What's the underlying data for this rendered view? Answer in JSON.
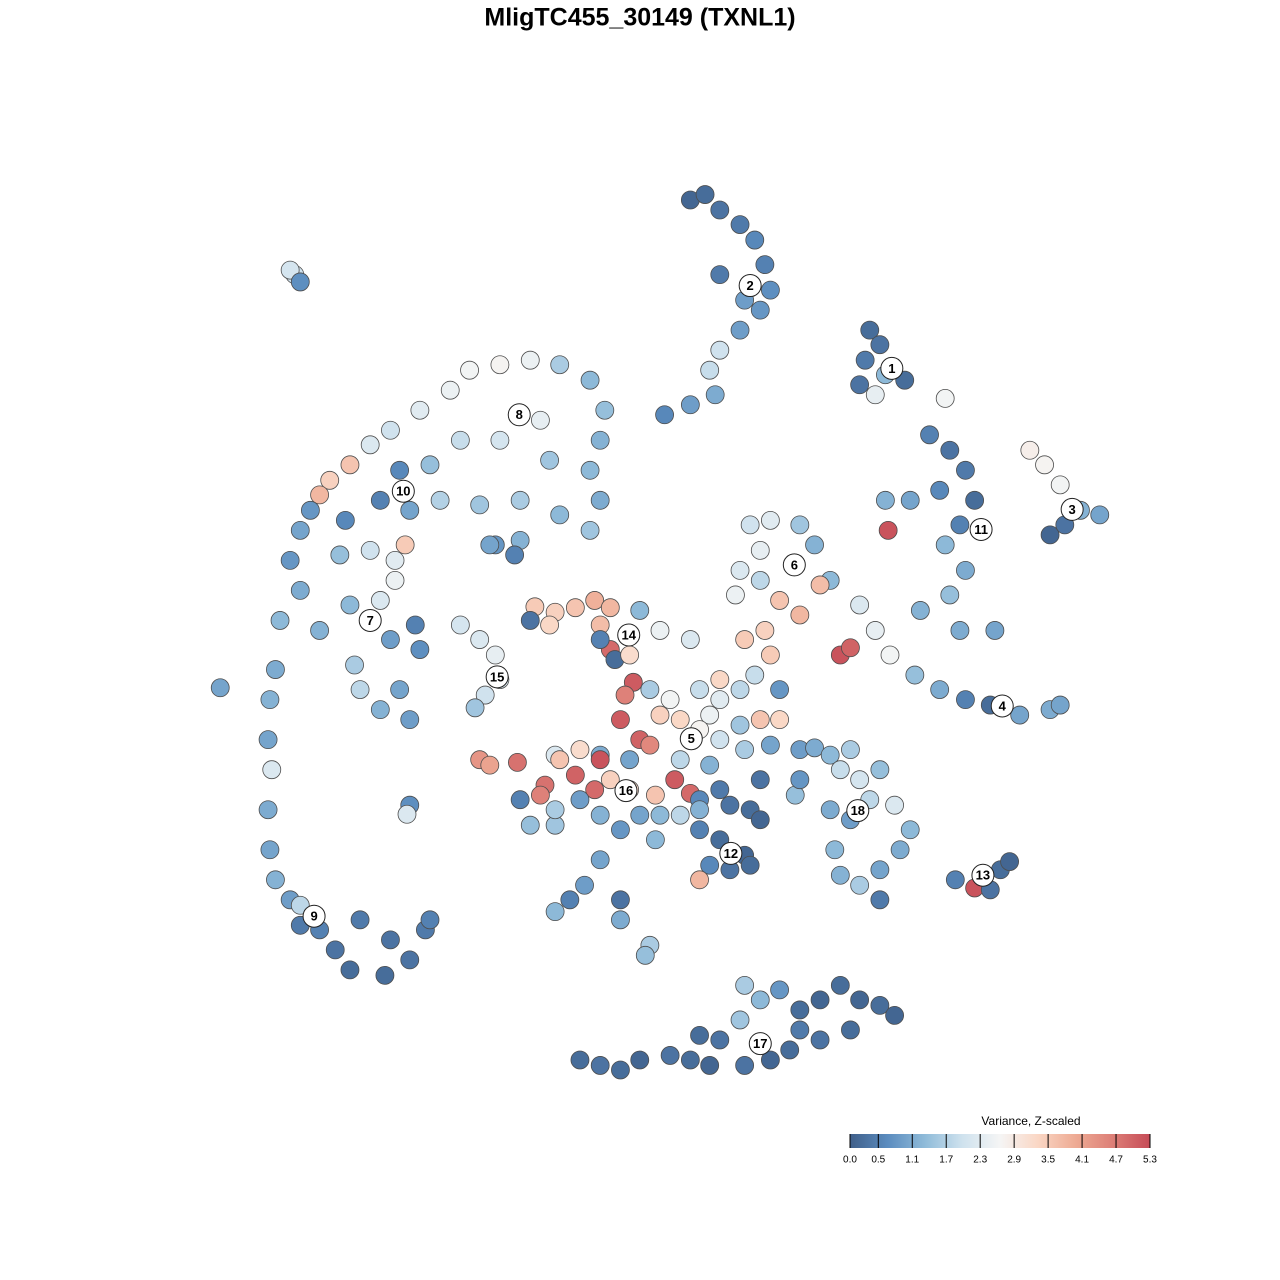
{
  "chart_data": {
    "type": "scatter",
    "title": "MligTC455_30149 (TXNL1)",
    "xlim": [
      0,
      100
    ],
    "ylim": [
      0,
      100
    ],
    "x": [
      53.3,
      54.9,
      56.5,
      58.7,
      60.3,
      61.4,
      62.0,
      60.9,
      58.7,
      56.5,
      55.4,
      56.0,
      53.3,
      50.5,
      56.5,
      59.2,
      72.8,
      73.9,
      72.3,
      74.5,
      76.6,
      73.4,
      71.7,
      81.0,
      90.2,
      91.8,
      93.5,
      95.7,
      97.8,
      92.4,
      94.0,
      79.3,
      81.5,
      83.2,
      80.4,
      77.2,
      74.5,
      84.2,
      82.6,
      81.0,
      83.2,
      81.5,
      78.3,
      82.6,
      86.4,
      74.8,
      71.7,
      73.4,
      75.0,
      77.7,
      80.4,
      83.2,
      85.9,
      89.1,
      92.4,
      93.5,
      69.6,
      70.7,
      59.8,
      62.0,
      65.2,
      66.8,
      60.9,
      58.7,
      58.2,
      60.9,
      68.5,
      63.0,
      65.2,
      61.4,
      59.2,
      62.0,
      67.4,
      29.3,
      32.6,
      35.9,
      39.1,
      42.4,
      44.0,
      43.5,
      42.4,
      43.5,
      42.4,
      39.1,
      34.8,
      30.4,
      27.2,
      23.9,
      20.7,
      18.5,
      37.0,
      32.6,
      28.3,
      25.0,
      21.7,
      19.6,
      22.8,
      16.3,
      14.1,
      13.0,
      12.0,
      15.8,
      26.1,
      38.0,
      34.8,
      32.1,
      34.2,
      10.9,
      9.8,
      10.9,
      8.7,
      13.0,
      15.2,
      18.5,
      21.2,
      21.2,
      19.6,
      16.3,
      20.7,
      23.9,
      21.7,
      19.6,
      16.8,
      22.8,
      23.4,
      17.4,
      22.3,
      8.2,
      7.6,
      7.4,
      7.8,
      7.4,
      7.6,
      8.2,
      9.8,
      10.9,
      13.0,
      14.7,
      16.3,
      17.4,
      20.7,
      20.1,
      22.8,
      24.5,
      25.0,
      10.3,
      9.8,
      10.9,
      2.2,
      22.8,
      22.5,
      10.9,
      28.3,
      30.4,
      32.1,
      32.6,
      31.0,
      29.9,
      31.5,
      36.4,
      38.6,
      40.8,
      42.9,
      44.6,
      43.5,
      35.9,
      38.0,
      47.8,
      50.0,
      53.3,
      44.6,
      45.1,
      47.1,
      43.5,
      46.7,
      48.9,
      51.1,
      54.3,
      56.5,
      58.7,
      55.4,
      50.0,
      52.2,
      54.3,
      56.5,
      58.7,
      60.9,
      63.0,
      62.0,
      59.2,
      47.8,
      45.7,
      48.9,
      46.7,
      52.2,
      55.4,
      43.5,
      56.5,
      60.3,
      63.0,
      46.2,
      38.6,
      41.3,
      43.5,
      40.8,
      42.9,
      37.5,
      37.0,
      34.8,
      35.9,
      38.6,
      41.3,
      44.6,
      46.7,
      49.5,
      51.6,
      53.3,
      30.4,
      31.5,
      34.5,
      39.1,
      47.8,
      50.0,
      43.5,
      38.6,
      45.7,
      43.5,
      41.8,
      40.2,
      38.6,
      45.7,
      45.7,
      48.9,
      48.4,
      49.5,
      54.3,
      56.5,
      57.6,
      59.8,
      60.9,
      54.3,
      56.5,
      59.2,
      59.8,
      55.4,
      57.6,
      54.3,
      54.3,
      52.2,
      60.9,
      65.2,
      66.8,
      68.5,
      70.7,
      69.6,
      71.7,
      73.9,
      72.8,
      75.5,
      77.2,
      76.1,
      73.9,
      71.7,
      69.6,
      69.0,
      68.5,
      70.7,
      73.9,
      64.7,
      65.2,
      82.1,
      84.2,
      85.9,
      87.0,
      88.0,
      41.3,
      43.5,
      45.7,
      47.8,
      51.1,
      53.3,
      55.4,
      56.5,
      58.7,
      60.9,
      59.2,
      63.0,
      65.2,
      67.4,
      69.6,
      71.7,
      73.9,
      75.5,
      70.7,
      67.4,
      64.1,
      62.0,
      59.2,
      54.3,
      65.2
    ],
    "y": [
      97.8,
      98.4,
      96.7,
      95.1,
      93.4,
      90.7,
      87.9,
      85.7,
      83.5,
      81.3,
      79.1,
      76.4,
      75.3,
      74.2,
      89.6,
      86.8,
      83.5,
      81.9,
      80.2,
      78.6,
      78.0,
      76.4,
      77.5,
      76.0,
      70.3,
      68.7,
      66.5,
      63.7,
      63.2,
      61.0,
      62.1,
      72.0,
      70.3,
      68.1,
      65.9,
      64.8,
      64.8,
      64.8,
      62.1,
      59.9,
      57.1,
      54.4,
      52.7,
      50.5,
      50.5,
      61.5,
      53.3,
      50.5,
      47.8,
      45.6,
      44.0,
      42.9,
      42.3,
      41.2,
      41.8,
      42.3,
      47.8,
      48.6,
      62.1,
      62.6,
      62.1,
      59.9,
      59.3,
      57.1,
      54.4,
      56.0,
      56.0,
      53.8,
      52.2,
      50.5,
      49.5,
      47.8,
      55.5,
      79.1,
      79.7,
      80.2,
      79.7,
      78.0,
      74.7,
      71.4,
      68.1,
      64.8,
      61.5,
      63.2,
      64.8,
      64.3,
      76.9,
      74.7,
      72.5,
      70.9,
      73.6,
      71.4,
      71.4,
      68.7,
      68.1,
      64.8,
      63.7,
      68.7,
      67.0,
      65.4,
      63.7,
      62.6,
      64.8,
      69.2,
      60.4,
      59.9,
      58.8,
      61.5,
      58.2,
      54.9,
      51.6,
      50.5,
      58.8,
      59.3,
      58.2,
      56.0,
      53.8,
      53.3,
      49.5,
      48.4,
      44.0,
      41.8,
      46.7,
      40.7,
      51.1,
      44.0,
      59.9,
      46.2,
      42.9,
      38.5,
      35.2,
      30.8,
      26.4,
      23.1,
      20.9,
      20.3,
      17.6,
      15.4,
      13.2,
      18.7,
      16.5,
      12.6,
      14.3,
      17.6,
      18.7,
      89.6,
      90.1,
      88.8,
      44.2,
      31.3,
      30.3,
      18.1,
      51.1,
      49.5,
      47.8,
      45.1,
      43.4,
      42.0,
      59.9,
      53.1,
      52.5,
      53.0,
      53.8,
      53.0,
      51.1,
      51.6,
      51.1,
      52.7,
      50.5,
      49.5,
      48.4,
      47.3,
      44.8,
      49.5,
      47.8,
      44.0,
      42.9,
      44.0,
      42.9,
      44.0,
      41.2,
      41.2,
      40.7,
      39.6,
      38.5,
      40.1,
      40.7,
      40.7,
      37.9,
      37.4,
      38.5,
      40.7,
      37.9,
      36.3,
      36.3,
      35.7,
      36.8,
      45.1,
      45.6,
      44.0,
      43.4,
      36.8,
      37.4,
      36.3,
      34.6,
      33.0,
      33.5,
      32.4,
      31.9,
      29.1,
      29.1,
      31.9,
      34.1,
      33.0,
      32.4,
      34.1,
      32.6,
      36.3,
      35.7,
      36.0,
      36.3,
      30.2,
      30.2,
      30.2,
      30.8,
      28.6,
      25.3,
      22.5,
      20.9,
      19.6,
      20.9,
      18.7,
      15.9,
      14.8,
      27.5,
      31.9,
      33.0,
      31.3,
      30.8,
      29.7,
      28.6,
      27.5,
      25.8,
      24.7,
      24.7,
      24.2,
      23.1,
      30.8,
      30.2,
      34.1,
      37.4,
      37.6,
      36.8,
      37.4,
      35.2,
      34.1,
      35.2,
      31.9,
      31.3,
      28.6,
      26.4,
      24.2,
      22.5,
      23.6,
      26.4,
      30.8,
      29.7,
      20.9,
      32.4,
      34.1,
      23.1,
      22.2,
      22.0,
      24.2,
      25.1,
      3.3,
      2.7,
      2.2,
      3.3,
      3.8,
      3.3,
      2.7,
      5.5,
      7.7,
      9.9,
      11.5,
      11.0,
      8.8,
      9.9,
      11.5,
      9.9,
      9.3,
      8.2,
      6.6,
      5.5,
      4.4,
      3.3,
      2.7,
      6.0,
      6.6
    ],
    "values": [
      0.1,
      0.2,
      0.3,
      0.4,
      0.6,
      0.5,
      0.7,
      0.8,
      0.9,
      2.0,
      1.9,
      1.1,
      0.9,
      0.6,
      0.4,
      0.9,
      0.2,
      0.3,
      0.4,
      1.3,
      0.2,
      2.4,
      0.3,
      2.6,
      2.8,
      2.7,
      2.6,
      1.2,
      1.0,
      0.1,
      0.3,
      0.5,
      0.3,
      0.4,
      0.6,
      1.0,
      1.2,
      0.2,
      0.5,
      1.3,
      1.1,
      1.4,
      1.2,
      1.1,
      1.0,
      5.2,
      2.2,
      2.4,
      2.6,
      1.4,
      1.1,
      0.5,
      0.2,
      1.0,
      1.1,
      1.0,
      5.2,
      5.0,
      2.0,
      2.3,
      1.5,
      1.2,
      2.4,
      2.2,
      2.5,
      1.8,
      1.3,
      3.6,
      3.8,
      3.4,
      3.5,
      3.5,
      3.7,
      2.6,
      2.7,
      2.5,
      1.6,
      1.3,
      1.4,
      1.2,
      1.3,
      1.1,
      1.5,
      1.3,
      1.6,
      1.5,
      2.5,
      2.3,
      2.0,
      2.2,
      2.4,
      2.1,
      1.9,
      1.4,
      0.6,
      0.5,
      1.0,
      3.6,
      3.4,
      3.8,
      0.8,
      0.6,
      1.7,
      1.5,
      1.2,
      0.8,
      0.5,
      1.0,
      0.8,
      1.1,
      1.3,
      1.2,
      1.4,
      2.0,
      2.3,
      2.5,
      2.2,
      1.3,
      0.9,
      0.7,
      1.0,
      1.2,
      1.6,
      0.9,
      0.5,
      1.8,
      3.5,
      1.1,
      1.2,
      1.0,
      2.2,
      1.1,
      1.0,
      1.2,
      0.9,
      1.8,
      0.5,
      0.3,
      0.2,
      0.4,
      0.3,
      0.2,
      0.3,
      0.4,
      0.5,
      2.0,
      2.1,
      0.7,
      1.0,
      0.7,
      2.2,
      0.4,
      2.1,
      2.2,
      2.4,
      2.2,
      2.0,
      1.5,
      1.0,
      3.5,
      3.4,
      3.6,
      3.9,
      3.8,
      3.7,
      0.3,
      3.3,
      1.3,
      2.5,
      2.2,
      4.9,
      0.2,
      5.1,
      0.5,
      3.2,
      1.6,
      2.6,
      1.9,
      2.3,
      1.8,
      2.5,
      3.4,
      3.3,
      2.7,
      2.0,
      1.5,
      3.6,
      3.3,
      1.0,
      1.6,
      5.0,
      5.1,
      4.5,
      1.0,
      1.8,
      1.2,
      1.1,
      3.3,
      1.9,
      0.8,
      4.6,
      2.2,
      3.2,
      5.2,
      5.0,
      4.9,
      4.8,
      4.6,
      0.5,
      1.4,
      1.5,
      0.9,
      3.4,
      3.2,
      3.6,
      5.1,
      4.9,
      4.3,
      4.1,
      4.8,
      3.6,
      1.0,
      1.3,
      1.2,
      1.6,
      0.8,
      1.0,
      0.9,
      0.5,
      1.3,
      0.3,
      1.1,
      1.6,
      1.4,
      1.3,
      0.6,
      0.4,
      0.3,
      0.2,
      0.1,
      0.5,
      0.2,
      0.1,
      0.2,
      0.6,
      0.3,
      3.8,
      1.2,
      1.8,
      0.3,
      0.9,
      1.1,
      1.3,
      1.6,
      1.9,
      2.1,
      1.4,
      1.8,
      2.2,
      1.3,
      1.1,
      1.0,
      1.6,
      1.2,
      1.3,
      1.1,
      0.9,
      0.4,
      1.4,
      0.8,
      0.5,
      5.2,
      0.3,
      0.2,
      0.1,
      0.2,
      0.3,
      0.2,
      0.1,
      0.3,
      0.2,
      0.1,
      0.3,
      1.5,
      1.3,
      1.6,
      0.8,
      0.2,
      0.1,
      0.2,
      0.1,
      0.2,
      0.1,
      0.2,
      0.3,
      0.2,
      0.1,
      0.3,
      0.2,
      0.4
    ],
    "clusters": {
      "labels": [
        "1",
        "2",
        "3",
        "4",
        "5",
        "6",
        "7",
        "8",
        "9",
        "10",
        "11",
        "12",
        "13",
        "14",
        "15",
        "16",
        "17",
        "18"
      ],
      "x": [
        75.2,
        59.8,
        94.8,
        87.2,
        53.4,
        64.6,
        18.5,
        34.7,
        12.4,
        22.1,
        84.9,
        57.7,
        85.1,
        46.6,
        32.3,
        46.3,
        60.9,
        71.5
      ],
      "y": [
        79.3,
        88.4,
        63.8,
        42.2,
        38.6,
        57.7,
        51.6,
        74.2,
        19.1,
        65.8,
        61.6,
        26.0,
        23.6,
        50.0,
        45.4,
        32.9,
        5.1,
        30.7
      ]
    },
    "colorbar": {
      "title": "Variance, Z-scaled",
      "clim": [
        0,
        5.3
      ],
      "ticks": [
        {
          "value": 0,
          "label": "0.0"
        },
        0.5,
        1.1,
        1.7,
        2.3,
        2.9,
        3.5,
        4.1,
        4.7,
        5.3
      ],
      "colors": [
        "#3f5f8a",
        "#5b8cbf",
        "#8fbbd9",
        "#cfe2ee",
        "#f5f5f5",
        "#fad7c5",
        "#eeab94",
        "#dd7f77",
        "#c64b57"
      ]
    }
  }
}
